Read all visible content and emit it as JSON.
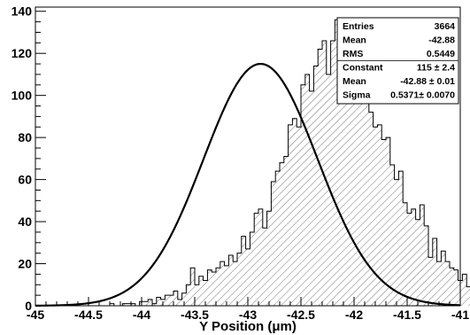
{
  "chart_data": {
    "type": "histogram",
    "title": "",
    "xlabel": "Y Position (μm)",
    "ylabel": "",
    "xlim": [
      -45.0,
      -41.0
    ],
    "ylim": [
      0,
      142
    ],
    "bin_width": 0.04,
    "bin_start": -44.98,
    "grid": false,
    "x_ticks": [
      -45,
      -44.5,
      -44,
      -43.5,
      -43,
      -42.5,
      -42,
      -41.5,
      -41
    ],
    "x_tick_labels": [
      "-45",
      "-44.5",
      "-44",
      "-43.5",
      "-43",
      "-42.5",
      "-42",
      "-41.5",
      "-41"
    ],
    "y_ticks": [
      0,
      20,
      40,
      60,
      80,
      100,
      120,
      140
    ],
    "y_tick_labels": [
      "0",
      "20",
      "40",
      "60",
      "80",
      "100",
      "120",
      "140"
    ],
    "series": [
      {
        "kind": "histogram",
        "fill": "hatched",
        "values": [
          0,
          0,
          0,
          0,
          0,
          0,
          0,
          0,
          0,
          0,
          0,
          0,
          0,
          0,
          0,
          0,
          0,
          1,
          0,
          0,
          1,
          1,
          1,
          0,
          2,
          2,
          3,
          1,
          4,
          3,
          5,
          5,
          7,
          3,
          6,
          10,
          18,
          10,
          14,
          12,
          17,
          16,
          18,
          21,
          19,
          24,
          21,
          25,
          33,
          27,
          35,
          44,
          46,
          37,
          45,
          59,
          64,
          68,
          71,
          86,
          89,
          85,
          105,
          110,
          102,
          114,
          122,
          126,
          110,
          126,
          136,
          114,
          116,
          113,
          101,
          102,
          101,
          97,
          92,
          85,
          86,
          79,
          80,
          67,
          60,
          64,
          49,
          44,
          46,
          41,
          48,
          38,
          23,
          32,
          21,
          26,
          21,
          18,
          17,
          12,
          15,
          9,
          13,
          9,
          10,
          5,
          6,
          4,
          5,
          4,
          2,
          2,
          1,
          2,
          1,
          1,
          0,
          0,
          0,
          0
        ]
      },
      {
        "kind": "gaussian_fit",
        "constant": 115,
        "mean": -42.88,
        "sigma": 0.5371
      }
    ],
    "stats_box": {
      "placement": "top-right",
      "rows": [
        {
          "label": "Entries",
          "value": "3664"
        },
        {
          "label": "Mean",
          "value": "-42.88"
        },
        {
          "label": "RMS",
          "value": "0.5449"
        },
        {
          "label": "Constant",
          "value": "115 ± 2.4"
        },
        {
          "label": "Mean",
          "value": "-42.88 ± 0.01"
        },
        {
          "label": "Sigma",
          "value": "0.5371± 0.0070"
        }
      ]
    },
    "colors": {
      "line": "#000000",
      "hatch": "#000000",
      "background": "#ffffff"
    }
  }
}
